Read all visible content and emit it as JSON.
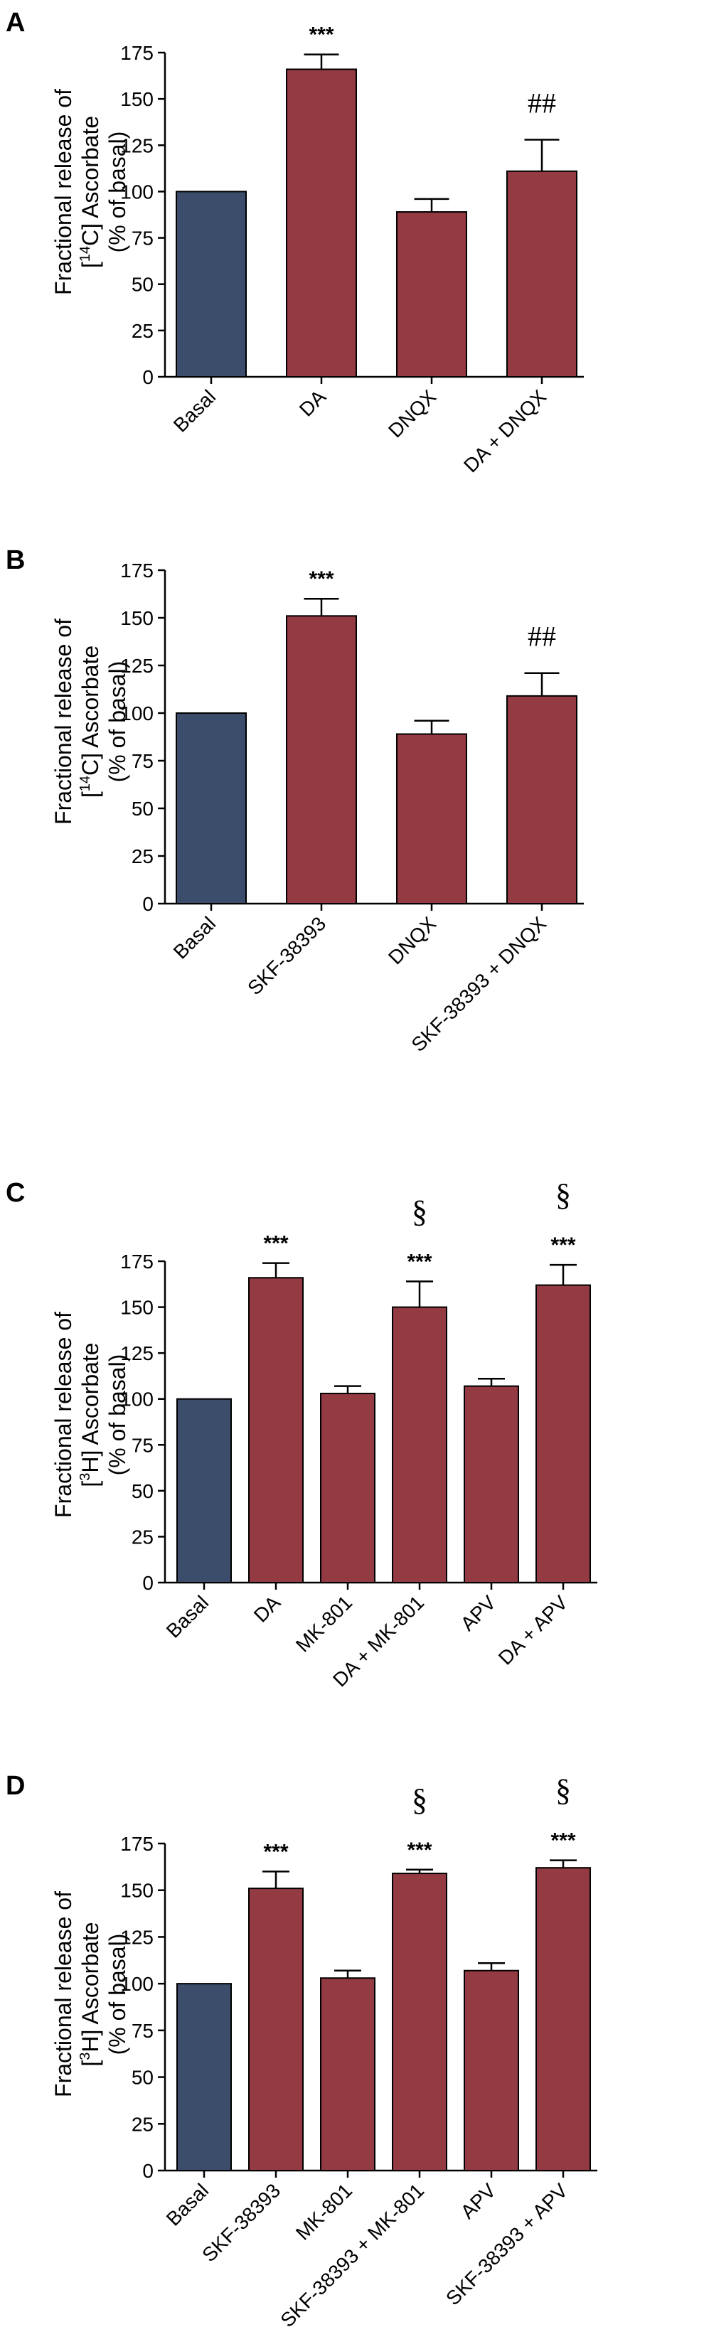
{
  "colors": {
    "basal": "#3c4d6b",
    "treatment": "#933a42",
    "edge": "#000000"
  },
  "chart_data": [
    {
      "type": "bar",
      "panel": "A",
      "ylabel_line1": "Fractional release of",
      "ylabel_line2_pre": "[",
      "ylabel_line2_sup": "14",
      "ylabel_line2_post": "C] Ascorbate",
      "ylabel_line3": "(% of basal)",
      "ylim": [
        0,
        175
      ],
      "yticks": [
        "0",
        "25",
        "50",
        "75",
        "100",
        "125",
        "150",
        "175"
      ],
      "categories": [
        "Basal",
        "DA",
        "DNQX",
        "DA + DNQX"
      ],
      "values": [
        100,
        166,
        89,
        111
      ],
      "errors": [
        0,
        8,
        7,
        17
      ],
      "sig_top": [
        "",
        "***",
        "",
        "##"
      ],
      "sig_upper": [
        "",
        "",
        "",
        ""
      ]
    },
    {
      "type": "bar",
      "panel": "B",
      "ylabel_line1": "Fractional release of",
      "ylabel_line2_pre": "[",
      "ylabel_line2_sup": "14",
      "ylabel_line2_post": "C] Ascorbate",
      "ylabel_line3": "(% of basal)",
      "ylim": [
        0,
        175
      ],
      "yticks": [
        "0",
        "25",
        "50",
        "75",
        "100",
        "125",
        "150",
        "175"
      ],
      "categories": [
        "Basal",
        "SKF-38393",
        "DNQX",
        "SKF-38393 + DNQX"
      ],
      "values": [
        100,
        151,
        89,
        109
      ],
      "errors": [
        0,
        9,
        7,
        12
      ],
      "sig_top": [
        "",
        "***",
        "",
        "##"
      ],
      "sig_upper": [
        "",
        "",
        "",
        ""
      ]
    },
    {
      "type": "bar",
      "panel": "C",
      "ylabel_line1": "Fractional release of",
      "ylabel_line2_pre": "[",
      "ylabel_line2_sup": "3",
      "ylabel_line2_post": "H] Ascorbate",
      "ylabel_line3": "(% of basal)",
      "ylim": [
        0,
        175
      ],
      "yticks": [
        "0",
        "25",
        "50",
        "75",
        "100",
        "125",
        "150",
        "175"
      ],
      "categories": [
        "Basal",
        "DA",
        "MK-801",
        "DA + MK-801",
        "APV",
        "DA + APV"
      ],
      "values": [
        100,
        166,
        103,
        150,
        107,
        162
      ],
      "errors": [
        0,
        8,
        4,
        14,
        4,
        11
      ],
      "sig_top": [
        "",
        "***",
        "",
        "***",
        "",
        "***"
      ],
      "sig_upper": [
        "",
        "",
        "",
        "§",
        "",
        "§"
      ]
    },
    {
      "type": "bar",
      "panel": "D",
      "ylabel_line1": "Fractional release of",
      "ylabel_line2_pre": "[",
      "ylabel_line2_sup": "3",
      "ylabel_line2_post": "H] Ascorbate",
      "ylabel_line3": "(% of basal)",
      "ylim": [
        0,
        175
      ],
      "yticks": [
        "0",
        "25",
        "50",
        "75",
        "100",
        "125",
        "150",
        "175"
      ],
      "categories": [
        "Basal",
        "SKF-38393",
        "MK-801",
        "SKF-38393 + MK-801",
        "APV",
        "SKF-38393 + APV"
      ],
      "values": [
        100,
        151,
        103,
        159,
        107,
        162
      ],
      "errors": [
        0,
        9,
        4,
        2,
        4,
        4
      ],
      "sig_top": [
        "",
        "***",
        "",
        "***",
        "",
        "***"
      ],
      "sig_upper": [
        "",
        "",
        "",
        "§",
        "",
        "§"
      ]
    }
  ]
}
